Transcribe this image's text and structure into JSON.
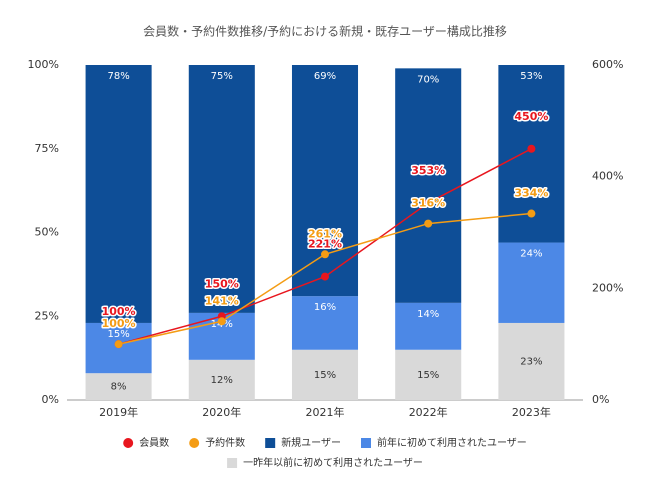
{
  "chart_data": {
    "type": "bar",
    "stacked": true,
    "title": "会員数・予約件数推移/予約における新規・既存ユーザー構成比推移",
    "categories": [
      "2019年",
      "2020年",
      "2021年",
      "2022年",
      "2023年"
    ],
    "series": [
      {
        "name": "会員数",
        "type": "line",
        "axis": "y2",
        "color": "#e8161e",
        "values": [
          100,
          150,
          221,
          353,
          450
        ],
        "value_labels": [
          "100%",
          "150%",
          "221%",
          "353%",
          "450%"
        ]
      },
      {
        "name": "予約件数",
        "type": "line",
        "axis": "y2",
        "color": "#f49c14",
        "values": [
          100,
          141,
          261,
          316,
          334
        ],
        "value_labels": [
          "100%",
          "141%",
          "261%",
          "316%",
          "334%"
        ]
      },
      {
        "name": "新規ユーザー",
        "type": "bar",
        "color": "#0e4e97",
        "values": [
          78,
          75,
          69,
          70,
          53
        ],
        "value_labels": [
          "78%",
          "75%",
          "69%",
          "70%",
          "53%"
        ]
      },
      {
        "name": "前年に初めて利用されたユーザー",
        "type": "bar",
        "color": "#4c88e6",
        "values": [
          15,
          14,
          16,
          14,
          24
        ],
        "value_labels": [
          "15%",
          "14%",
          "16%",
          "14%",
          "24%"
        ]
      },
      {
        "name": "一昨年以前に初めて利用されたユーザー",
        "type": "bar",
        "color": "#d9d9d9",
        "values": [
          8,
          12,
          15,
          15,
          23
        ],
        "value_labels": [
          "8%",
          "12%",
          "15%",
          "15%",
          "23%"
        ]
      }
    ],
    "ylim": [
      0,
      100
    ],
    "yticks": [
      {
        "value": 0,
        "label": "0%"
      },
      {
        "value": 25,
        "label": "25%"
      },
      {
        "value": 50,
        "label": "50%"
      },
      {
        "value": 75,
        "label": "75%"
      },
      {
        "value": 100,
        "label": "100%"
      }
    ],
    "y2lim": [
      0,
      600
    ],
    "y2ticks": [
      {
        "value": 0,
        "label": "0%"
      },
      {
        "value": 200,
        "label": "200%"
      },
      {
        "value": 400,
        "label": "400%"
      },
      {
        "value": 600,
        "label": "600%"
      }
    ],
    "grid": false,
    "legend": "bottom"
  }
}
